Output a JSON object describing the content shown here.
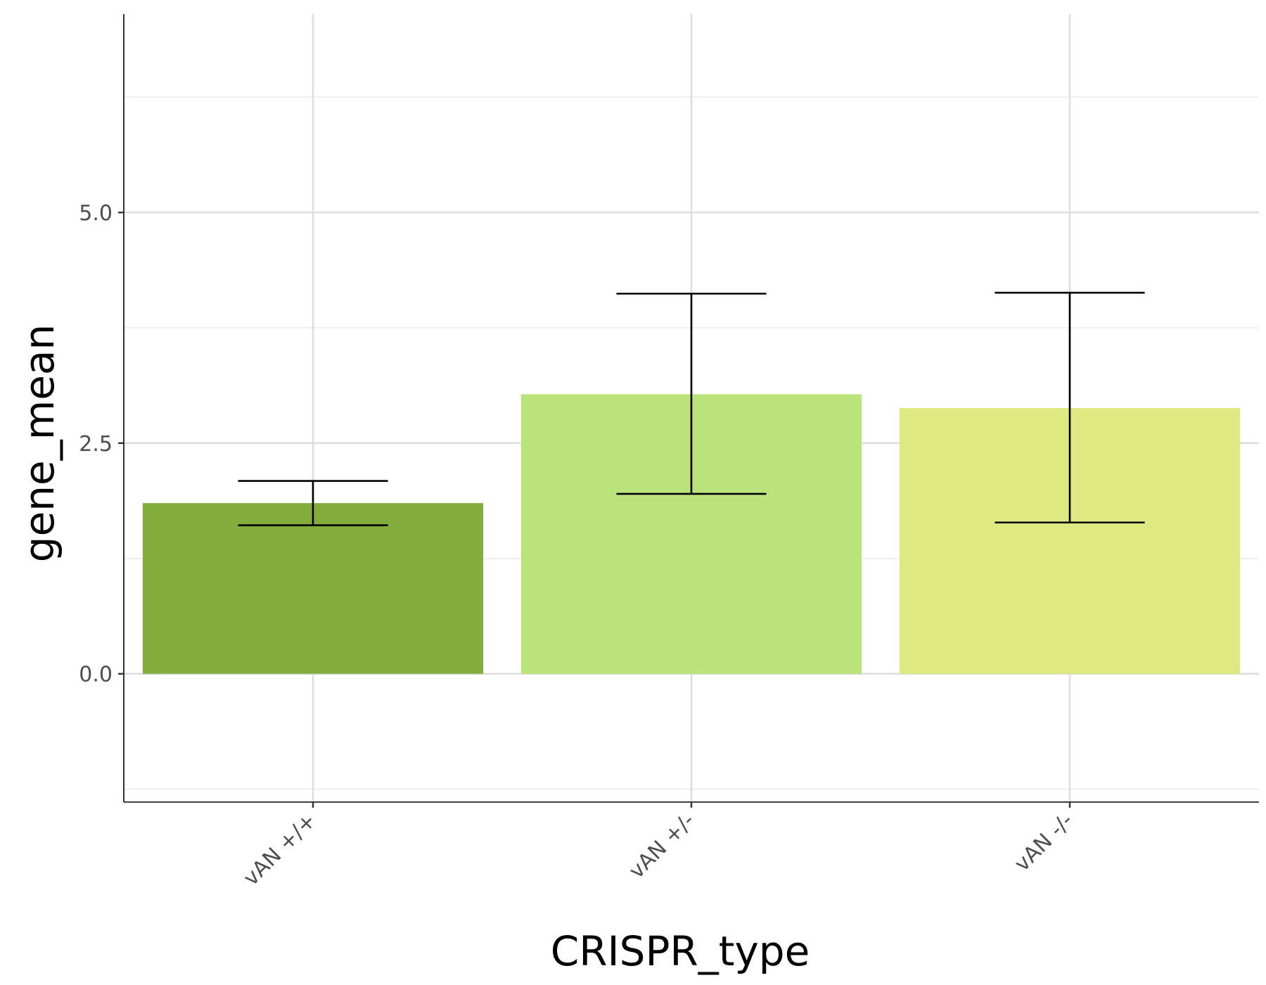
{
  "chart_data": {
    "type": "bar",
    "xlabel": "CRISPR_type",
    "ylabel": "gene_mean",
    "categories": [
      "vAN +/+",
      "vAN +/-",
      "vAN -/-"
    ],
    "values": [
      1.85,
      3.03,
      2.88
    ],
    "error_low": [
      1.61,
      1.95,
      1.64
    ],
    "error_high": [
      2.09,
      4.12,
      4.13
    ],
    "colors": [
      "#82ad3c",
      "#bbe37b",
      "#dfe982"
    ],
    "ylim": [
      -1.39,
      7.15
    ],
    "y_ticks": [
      0.0,
      2.5,
      5.0
    ],
    "y_tick_labels": [
      "0.0",
      "2.5",
      "5.0"
    ],
    "y_minor_ticks": [
      -1.25,
      1.25,
      3.75,
      6.25
    ],
    "grid": true,
    "legend": "none"
  }
}
